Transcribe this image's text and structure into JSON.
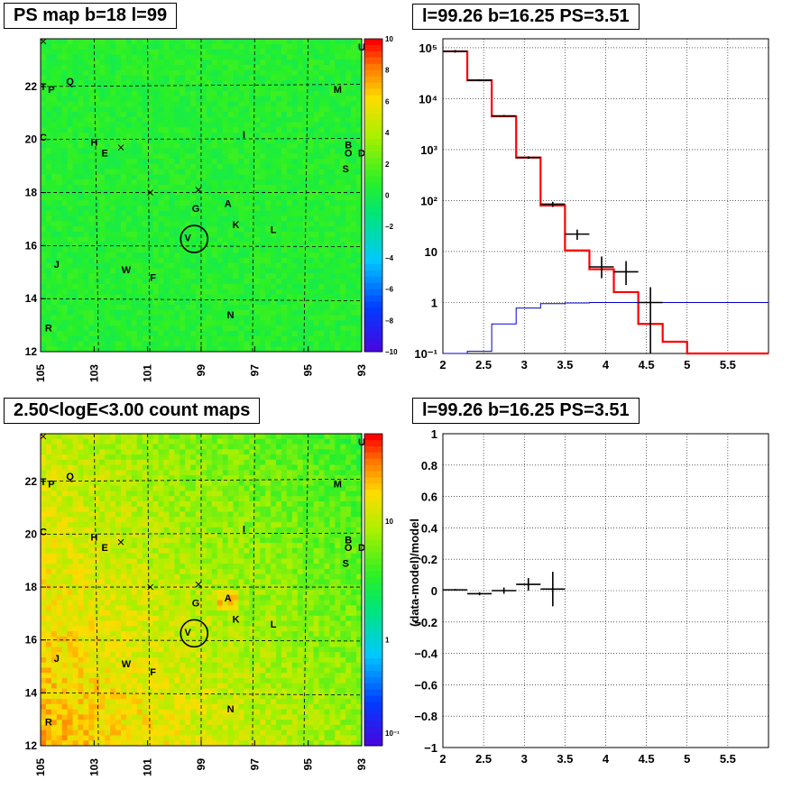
{
  "panels": {
    "map_top": {
      "title": "PS map b=18 l=99",
      "x_ticks": [
        "105",
        "103",
        "101",
        "99",
        "97",
        "95",
        "93"
      ],
      "y_ticks": [
        "12",
        "14",
        "16",
        "18",
        "20",
        "22"
      ],
      "colorbar_ticks": [
        "10",
        "8",
        "6",
        "4",
        "2",
        "0",
        "−2",
        "−4",
        "−6",
        "−8",
        "−10"
      ]
    },
    "map_bottom": {
      "title": "2.50<logE<3.00 count maps",
      "x_ticks": [
        "105",
        "103",
        "101",
        "99",
        "97",
        "95",
        "93"
      ],
      "y_ticks": [
        "12",
        "14",
        "16",
        "18",
        "20",
        "22"
      ],
      "colorbar_ticks": [
        "10",
        "1",
        "10⁻¹"
      ]
    },
    "spectrum": {
      "title": "l=99.26 b=16.25 PS=3.51"
    },
    "residual": {
      "title": "l=99.26 b=16.25 PS=3.51",
      "ylabel": "(data-model)/model"
    }
  },
  "source_labels": [
    {
      "name": "T",
      "l": 104.9,
      "b": 22.0
    },
    {
      "name": "P",
      "l": 104.6,
      "b": 21.9
    },
    {
      "name": "Q",
      "l": 103.9,
      "b": 22.2
    },
    {
      "name": "M",
      "l": 93.9,
      "b": 21.9
    },
    {
      "name": "U",
      "l": 93.0,
      "b": 23.5
    },
    {
      "name": "C",
      "l": 104.9,
      "b": 20.1
    },
    {
      "name": "H",
      "l": 103.0,
      "b": 19.9
    },
    {
      "name": "E",
      "l": 102.6,
      "b": 19.5
    },
    {
      "name": "I",
      "l": 97.4,
      "b": 20.2
    },
    {
      "name": "B",
      "l": 93.5,
      "b": 19.8
    },
    {
      "name": "O",
      "l": 93.5,
      "b": 19.5
    },
    {
      "name": "D",
      "l": 93.0,
      "b": 19.5
    },
    {
      "name": "S",
      "l": 93.6,
      "b": 18.9
    },
    {
      "name": "A",
      "l": 98.0,
      "b": 17.6
    },
    {
      "name": "G",
      "l": 99.2,
      "b": 17.4
    },
    {
      "name": "K",
      "l": 97.7,
      "b": 16.8
    },
    {
      "name": "L",
      "l": 96.3,
      "b": 16.6
    },
    {
      "name": "V",
      "l": 99.5,
      "b": 16.3
    },
    {
      "name": "J",
      "l": 104.4,
      "b": 15.3
    },
    {
      "name": "W",
      "l": 101.8,
      "b": 15.1
    },
    {
      "name": "F",
      "l": 100.8,
      "b": 14.8
    },
    {
      "name": "N",
      "l": 97.9,
      "b": 13.4
    },
    {
      "name": "R",
      "l": 104.7,
      "b": 12.9
    }
  ],
  "chart_data": [
    {
      "type": "heatmap",
      "title": "PS map b=18 l=99",
      "xlim": [
        105,
        93
      ],
      "ylim": [
        12,
        23.8
      ],
      "zlim": [
        -10,
        10
      ],
      "colorbar": "linear",
      "circle": {
        "l": 99.26,
        "b": 16.25
      }
    },
    {
      "type": "heatmap",
      "title": "2.50<logE<3.00 count maps",
      "xlim": [
        105,
        93
      ],
      "ylim": [
        12,
        23.8
      ],
      "zlim": [
        0.07,
        40
      ],
      "colorbar": "log",
      "circle": {
        "l": 99.26,
        "b": 16.25
      }
    },
    {
      "type": "line",
      "title": "l=99.26 b=16.25 PS=3.51",
      "xlim": [
        2,
        6
      ],
      "ylim": [
        0.1,
        150000
      ],
      "yscale": "log",
      "x_ticks": [
        "2",
        "2.5",
        "3",
        "3.5",
        "4",
        "4.5",
        "5",
        "5.5"
      ],
      "y_ticks": [
        "10⁻¹",
        "1",
        "10",
        "10²",
        "10³",
        "10⁴",
        "10⁵"
      ],
      "grid": true,
      "series": [
        {
          "x": [
            2.0,
            2.3,
            2.6,
            2.9,
            3.2,
            3.5,
            3.8,
            4.1,
            4.4,
            4.7,
            5.0,
            6.0
          ],
          "values": [
            85000,
            23000,
            4500,
            700,
            80,
            10.5,
            4.5,
            1.6,
            0.38,
            0.17,
            0.1,
            0.1
          ],
          "color": "#ff0000"
        },
        {
          "x": [
            2.0,
            2.3,
            2.6,
            2.9,
            3.2,
            3.5,
            3.8,
            4.1,
            4.4,
            4.7,
            5.0,
            6.0
          ],
          "values": [
            0.1,
            0.11,
            0.38,
            0.78,
            0.95,
            0.98,
            1.0,
            1.0,
            1.0,
            1.0,
            1.0,
            1.0
          ],
          "color": "#0000cc"
        }
      ],
      "points": [
        {
          "x": 2.15,
          "y": 85000,
          "xerr": 0.15,
          "ylo": 80000,
          "yhi": 90000
        },
        {
          "x": 2.45,
          "y": 23000,
          "xerr": 0.15,
          "ylo": 22000,
          "yhi": 24000
        },
        {
          "x": 2.75,
          "y": 4600,
          "xerr": 0.15,
          "ylo": 4400,
          "yhi": 4800
        },
        {
          "x": 3.05,
          "y": 700,
          "xerr": 0.15,
          "ylo": 660,
          "yhi": 740
        },
        {
          "x": 3.35,
          "y": 85,
          "xerr": 0.15,
          "ylo": 75,
          "yhi": 95
        },
        {
          "x": 3.65,
          "y": 22,
          "xerr": 0.15,
          "ylo": 17,
          "yhi": 27
        },
        {
          "x": 3.95,
          "y": 5,
          "xerr": 0.15,
          "ylo": 3,
          "yhi": 8
        },
        {
          "x": 4.25,
          "y": 4,
          "xerr": 0.15,
          "ylo": 2.2,
          "yhi": 6.5
        },
        {
          "x": 4.55,
          "y": 1,
          "xerr": 0.15,
          "ylo": 0.1,
          "yhi": 2
        }
      ]
    },
    {
      "type": "scatter",
      "title": "l=99.26 b=16.25 PS=3.51",
      "ylabel": "(data-model)/model",
      "xlim": [
        2,
        6
      ],
      "ylim": [
        -1,
        1
      ],
      "x_ticks": [
        "2",
        "2.5",
        "3",
        "3.5",
        "4",
        "4.5",
        "5",
        "5.5"
      ],
      "y_ticks": [
        "−1",
        "−0.8",
        "−0.6",
        "−0.4",
        "−0.2",
        "0",
        "0.2",
        "0.4",
        "0.6",
        "0.8",
        "1"
      ],
      "grid": true,
      "points": [
        {
          "x": 2.15,
          "y": 0.005,
          "xerr": 0.15,
          "yerr": 0.005
        },
        {
          "x": 2.45,
          "y": -0.02,
          "xerr": 0.15,
          "yerr": 0.01
        },
        {
          "x": 2.75,
          "y": 0.0,
          "xerr": 0.15,
          "yerr": 0.02
        },
        {
          "x": 3.05,
          "y": 0.04,
          "xerr": 0.15,
          "yerr": 0.04
        },
        {
          "x": 3.35,
          "y": 0.01,
          "xerr": 0.15,
          "yerr": 0.11
        }
      ]
    }
  ]
}
